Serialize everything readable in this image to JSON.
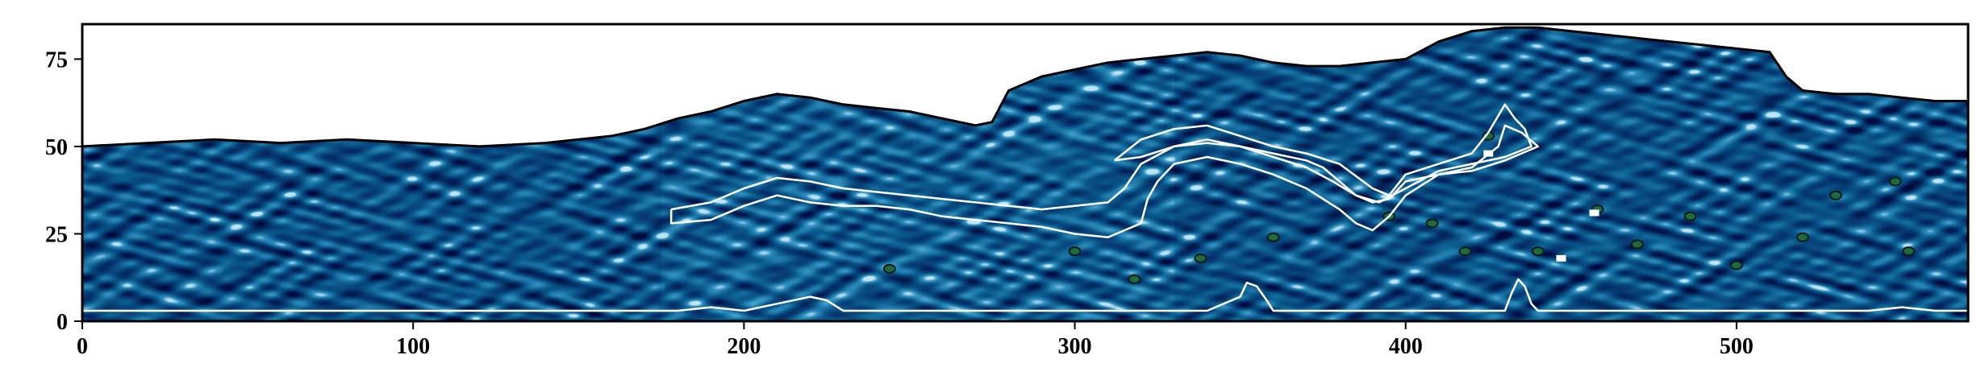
{
  "chart_data": {
    "type": "heatmap",
    "title": "",
    "xlabel": "",
    "ylabel": "",
    "xlim": [
      0,
      570
    ],
    "ylim": [
      0,
      85
    ],
    "xticks": [
      0,
      100,
      200,
      300,
      400,
      500
    ],
    "yticks": [
      0,
      25,
      50,
      75
    ],
    "colormap": [
      "#000c3f",
      "#05336b",
      "#0b5c8e",
      "#2f8fbf",
      "#bfe5f5"
    ],
    "colors": {
      "background": "#ffffff",
      "top_boundary": "#000000",
      "contour": "#ffffff",
      "feature_fill": "#1d6b3a",
      "feature_edge": "#0a1a20"
    },
    "top_boundary": [
      [
        0,
        50
      ],
      [
        20,
        51
      ],
      [
        40,
        52
      ],
      [
        60,
        51
      ],
      [
        80,
        52
      ],
      [
        100,
        51
      ],
      [
        120,
        50
      ],
      [
        140,
        51
      ],
      [
        160,
        53
      ],
      [
        170,
        55
      ],
      [
        180,
        58
      ],
      [
        190,
        60
      ],
      [
        200,
        63
      ],
      [
        210,
        65
      ],
      [
        220,
        64
      ],
      [
        230,
        62
      ],
      [
        240,
        61
      ],
      [
        250,
        60
      ],
      [
        260,
        58
      ],
      [
        270,
        56
      ],
      [
        275,
        57
      ],
      [
        280,
        66
      ],
      [
        290,
        70
      ],
      [
        300,
        72
      ],
      [
        310,
        74
      ],
      [
        320,
        75
      ],
      [
        330,
        76
      ],
      [
        340,
        77
      ],
      [
        350,
        76
      ],
      [
        360,
        74
      ],
      [
        370,
        73
      ],
      [
        380,
        73
      ],
      [
        390,
        74
      ],
      [
        400,
        75
      ],
      [
        410,
        80
      ],
      [
        420,
        83
      ],
      [
        430,
        84
      ],
      [
        440,
        84
      ],
      [
        450,
        83
      ],
      [
        460,
        82
      ],
      [
        470,
        81
      ],
      [
        480,
        80
      ],
      [
        490,
        79
      ],
      [
        500,
        78
      ],
      [
        510,
        77
      ],
      [
        515,
        70
      ],
      [
        520,
        66
      ],
      [
        530,
        65
      ],
      [
        540,
        65
      ],
      [
        550,
        64
      ],
      [
        560,
        63
      ],
      [
        570,
        63
      ]
    ],
    "contours": [
      [
        [
          178,
          32
        ],
        [
          190,
          34
        ],
        [
          200,
          38
        ],
        [
          210,
          41
        ],
        [
          220,
          40
        ],
        [
          230,
          38
        ],
        [
          240,
          37
        ],
        [
          250,
          36
        ],
        [
          260,
          35
        ],
        [
          270,
          34
        ],
        [
          280,
          33
        ],
        [
          290,
          32
        ],
        [
          300,
          33
        ],
        [
          310,
          34
        ],
        [
          315,
          38
        ],
        [
          320,
          45
        ],
        [
          330,
          50
        ],
        [
          340,
          52
        ],
        [
          350,
          50
        ],
        [
          360,
          48
        ],
        [
          370,
          46
        ],
        [
          375,
          44
        ],
        [
          380,
          40
        ],
        [
          385,
          36
        ],
        [
          390,
          34
        ],
        [
          395,
          35
        ],
        [
          400,
          40
        ],
        [
          410,
          42
        ],
        [
          420,
          44
        ],
        [
          428,
          50
        ],
        [
          430,
          56
        ],
        [
          435,
          54
        ],
        [
          440,
          50
        ],
        [
          430,
          46
        ],
        [
          420,
          43
        ],
        [
          410,
          42
        ],
        [
          400,
          36
        ],
        [
          395,
          30
        ],
        [
          390,
          26
        ],
        [
          385,
          28
        ],
        [
          380,
          32
        ],
        [
          375,
          35
        ],
        [
          370,
          38
        ],
        [
          360,
          42
        ],
        [
          350,
          45
        ],
        [
          340,
          47
        ],
        [
          330,
          45
        ],
        [
          325,
          40
        ],
        [
          322,
          35
        ],
        [
          320,
          28
        ],
        [
          310,
          24
        ],
        [
          300,
          25
        ],
        [
          290,
          27
        ],
        [
          280,
          28
        ],
        [
          270,
          29
        ],
        [
          260,
          30
        ],
        [
          250,
          32
        ],
        [
          240,
          33
        ],
        [
          230,
          33
        ],
        [
          220,
          34
        ],
        [
          210,
          36
        ],
        [
          200,
          33
        ],
        [
          190,
          29
        ],
        [
          178,
          28
        ],
        [
          178,
          32
        ]
      ],
      [
        [
          312,
          46
        ],
        [
          320,
          52
        ],
        [
          330,
          55
        ],
        [
          340,
          56
        ],
        [
          350,
          53
        ],
        [
          360,
          50
        ],
        [
          370,
          48
        ],
        [
          380,
          45
        ],
        [
          390,
          38
        ],
        [
          395,
          36
        ],
        [
          400,
          42
        ],
        [
          410,
          45
        ],
        [
          420,
          48
        ],
        [
          425,
          54
        ],
        [
          430,
          62
        ],
        [
          433,
          58
        ],
        [
          436,
          55
        ],
        [
          438,
          50
        ],
        [
          430,
          47
        ],
        [
          420,
          45
        ],
        [
          410,
          43
        ],
        [
          400,
          38
        ],
        [
          392,
          34
        ],
        [
          385,
          36
        ],
        [
          378,
          40
        ],
        [
          370,
          44
        ],
        [
          360,
          47
        ],
        [
          350,
          50
        ],
        [
          340,
          51
        ],
        [
          330,
          50
        ],
        [
          320,
          47
        ],
        [
          312,
          46
        ]
      ],
      [
        [
          0,
          3
        ],
        [
          60,
          3
        ],
        [
          120,
          3
        ],
        [
          180,
          3
        ],
        [
          190,
          4
        ],
        [
          200,
          3
        ],
        [
          210,
          5
        ],
        [
          220,
          7
        ],
        [
          225,
          6
        ],
        [
          230,
          3
        ],
        [
          300,
          3
        ],
        [
          340,
          3
        ],
        [
          345,
          5
        ],
        [
          350,
          7
        ],
        [
          352,
          11
        ],
        [
          355,
          10
        ],
        [
          358,
          6
        ],
        [
          360,
          3
        ],
        [
          420,
          3
        ],
        [
          430,
          3
        ],
        [
          432,
          8
        ],
        [
          434,
          12
        ],
        [
          436,
          10
        ],
        [
          438,
          5
        ],
        [
          440,
          3
        ],
        [
          500,
          3
        ],
        [
          540,
          3
        ],
        [
          550,
          4
        ],
        [
          560,
          3
        ],
        [
          570,
          3
        ]
      ]
    ],
    "features": [
      [
        425,
        53
      ],
      [
        440,
        20
      ],
      [
        395,
        30
      ],
      [
        408,
        28
      ],
      [
        470,
        22
      ],
      [
        520,
        24
      ],
      [
        530,
        36
      ],
      [
        318,
        12
      ],
      [
        338,
        18
      ],
      [
        360,
        24
      ],
      [
        300,
        20
      ],
      [
        458,
        32
      ],
      [
        486,
        30
      ],
      [
        500,
        16
      ],
      [
        548,
        40
      ],
      [
        552,
        20
      ],
      [
        418,
        20
      ],
      [
        244,
        15
      ]
    ],
    "white_spots": [
      [
        457,
        31
      ],
      [
        447,
        18
      ],
      [
        425,
        48
      ]
    ]
  }
}
